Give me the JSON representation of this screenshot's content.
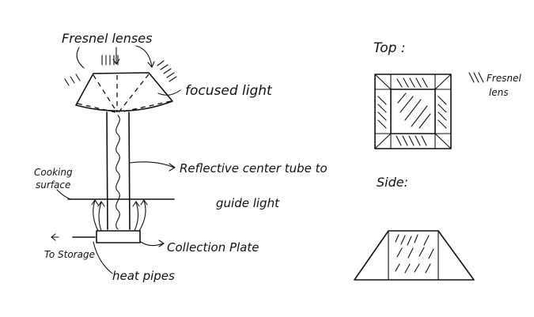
{
  "labels": {
    "fresnel_lenses": "Fresnel lenses",
    "focused_light": "focused light",
    "reflective_tube_line1": "Reflective center tube to",
    "reflective_tube_line2": "guide light",
    "cooking_line1": "Cooking",
    "cooking_line2": "surface",
    "to_storage": "To Storage",
    "collection_plate": "Collection Plate",
    "heat_pipes": "heat pipes",
    "top": "Top :",
    "fresnel_line1": "Fresnel",
    "fresnel_line2": "lens",
    "side": "Side:"
  },
  "colors": {
    "ink": "#111111",
    "paper": "#ffffff"
  }
}
